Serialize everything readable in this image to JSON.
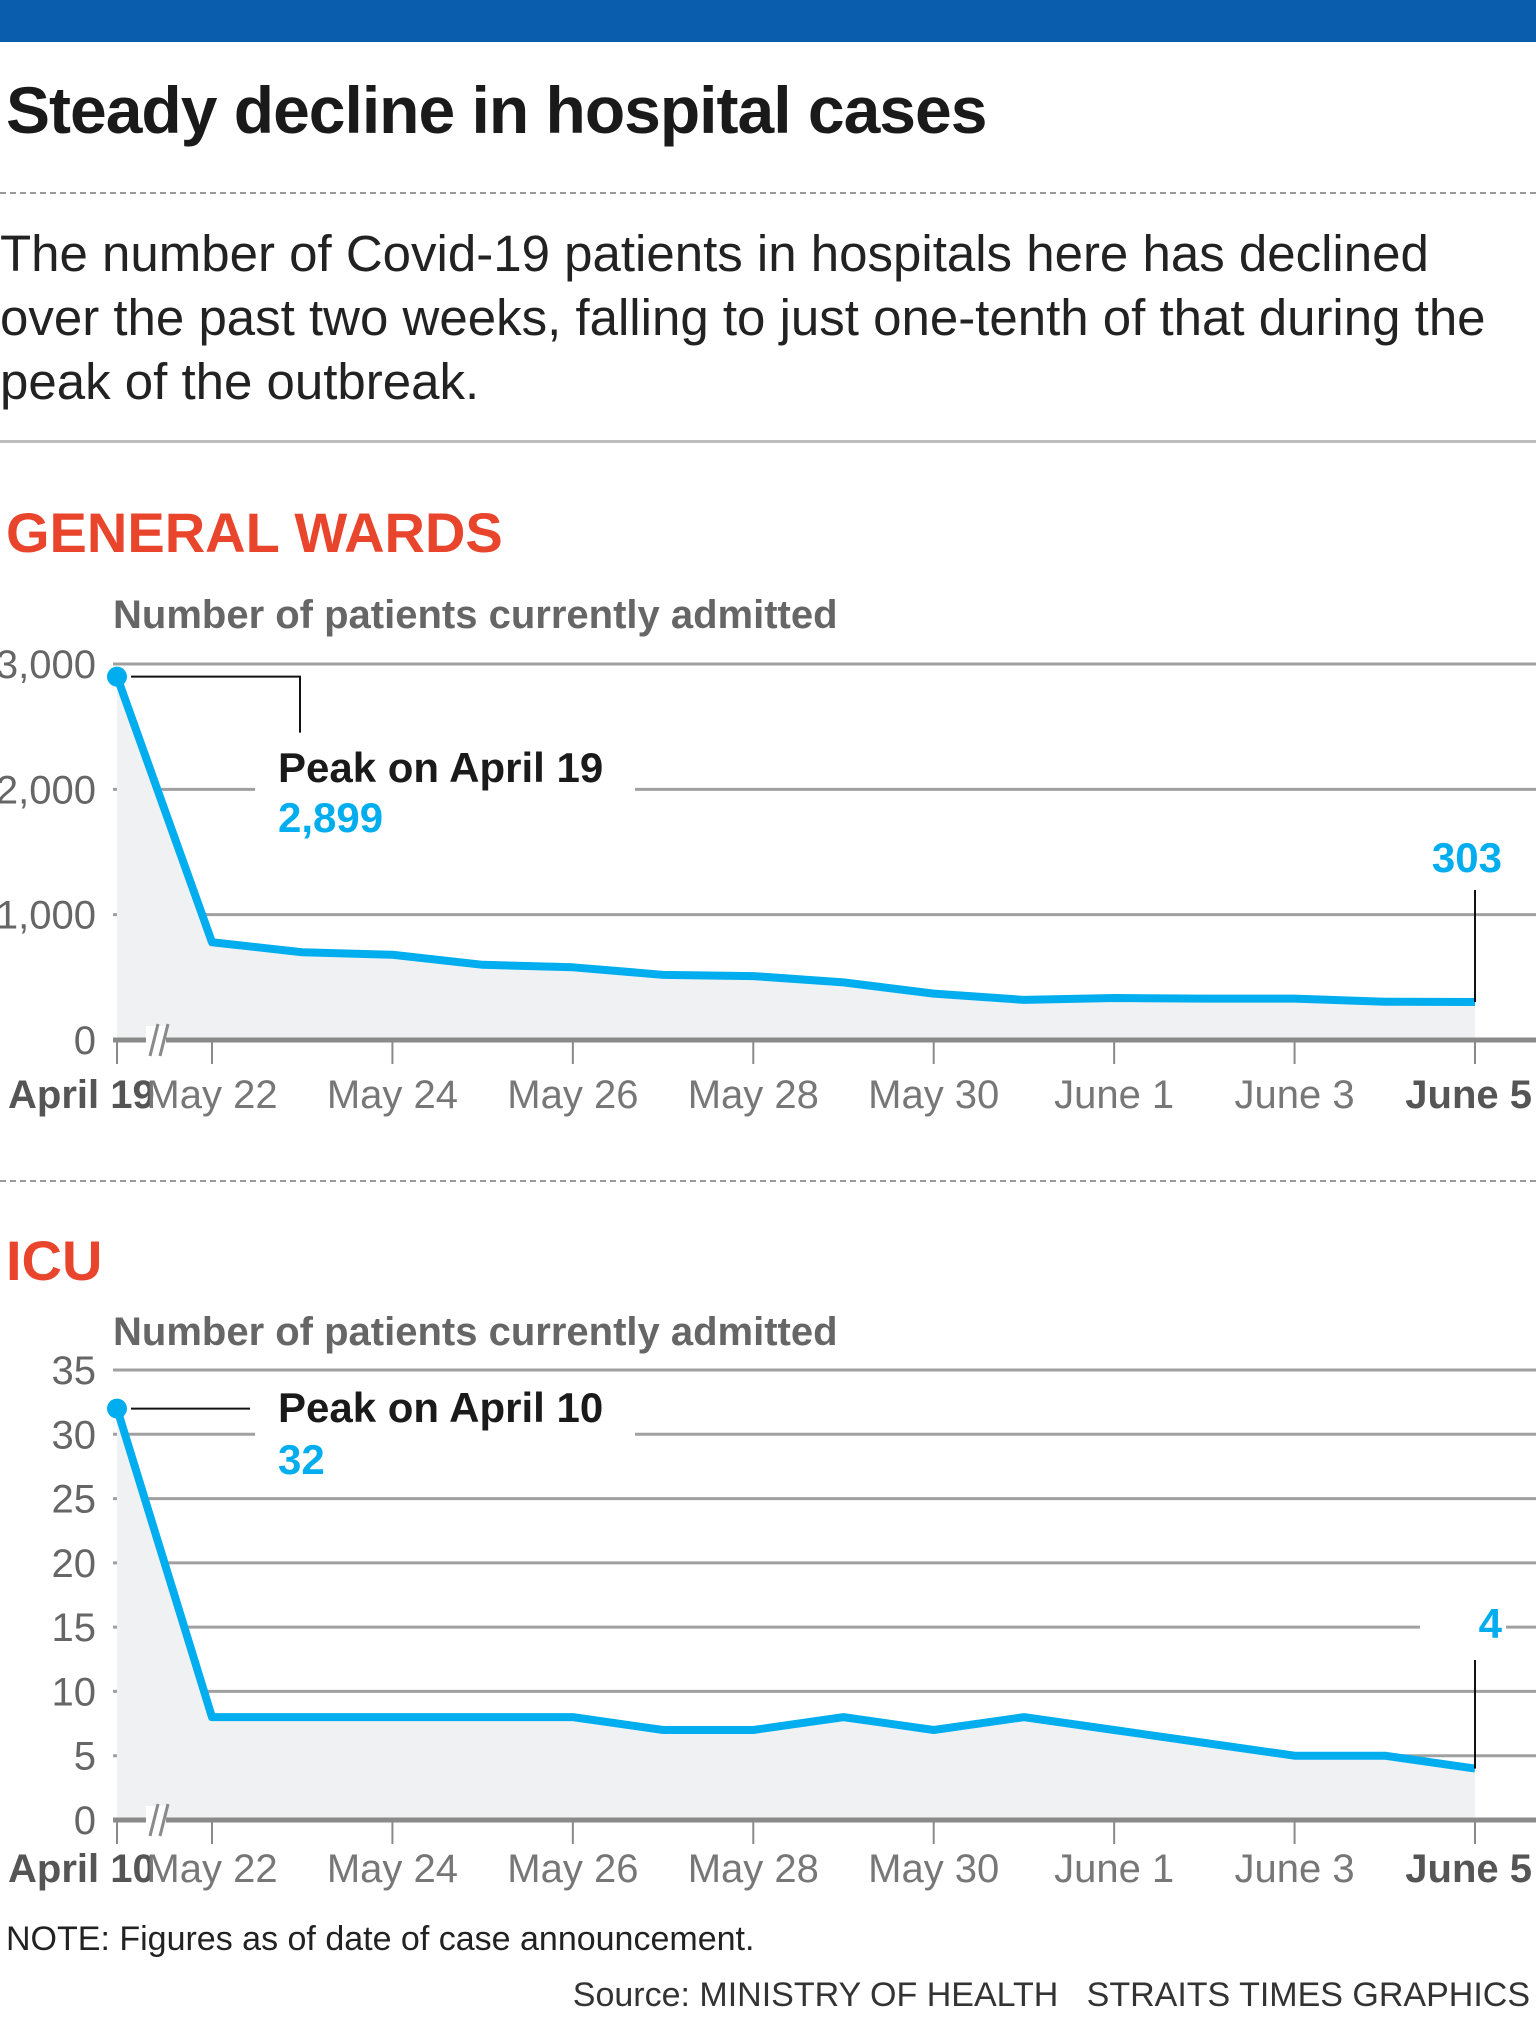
{
  "header": {
    "title": "Steady decline in hospital cases",
    "subtitle": "The number of Covid-19 patients in hospitals here has declined over the past two weeks, falling to just one-tenth of that during the peak of the outbreak."
  },
  "colors": {
    "top_bar": "#0a5cac",
    "section_title": "#e8452c",
    "line": "#00aeef",
    "area": "#eff1f3",
    "grid": "#a0a0a0"
  },
  "chart_data": [
    {
      "type": "area",
      "section_title": "GENERAL WARDS",
      "ylabel": "Number of patients currently admitted",
      "ylim": [
        0,
        3000
      ],
      "yticks": [
        "0",
        "1,000",
        "2,000",
        "3,000"
      ],
      "ytick_values": [
        0,
        1000,
        2000,
        3000
      ],
      "axis_break": true,
      "x_tick_labels": [
        "April 19",
        "May 22",
        "May 24",
        "May 26",
        "May 28",
        "May 30",
        "June 1",
        "June 3",
        "June 5"
      ],
      "x": [
        "April 19",
        "May 22",
        "May 23",
        "May 24",
        "May 25",
        "May 26",
        "May 27",
        "May 28",
        "May 29",
        "May 30",
        "May 31",
        "June 1",
        "June 2",
        "June 3",
        "June 4",
        "June 5"
      ],
      "values": [
        2899,
        780,
        700,
        680,
        600,
        580,
        520,
        510,
        460,
        370,
        320,
        335,
        330,
        330,
        305,
        303
      ],
      "annotations": {
        "peak_label": "Peak on April 19",
        "peak_value": "2,899",
        "end_value": "303"
      },
      "grid": true
    },
    {
      "type": "area",
      "section_title": "ICU",
      "ylabel": "Number of patients currently admitted",
      "ylim": [
        0,
        35
      ],
      "yticks": [
        "0",
        "5",
        "10",
        "15",
        "20",
        "25",
        "30",
        "35"
      ],
      "ytick_values": [
        0,
        5,
        10,
        15,
        20,
        25,
        30,
        35
      ],
      "axis_break": true,
      "x_tick_labels": [
        "April 10",
        "May 22",
        "May 24",
        "May 26",
        "May 28",
        "May 30",
        "June 1",
        "June 3",
        "June 5"
      ],
      "x": [
        "April 10",
        "May 22",
        "May 23",
        "May 24",
        "May 25",
        "May 26",
        "May 27",
        "May 28",
        "May 29",
        "May 30",
        "May 31",
        "June 1",
        "June 2",
        "June 3",
        "June 4",
        "June 5"
      ],
      "values": [
        32,
        8,
        8,
        8,
        8,
        8,
        7,
        7,
        8,
        7,
        8,
        7,
        6,
        5,
        5,
        4
      ],
      "annotations": {
        "peak_label": "Peak on April 10",
        "peak_value": "32",
        "end_value": "4"
      },
      "grid": true
    }
  ],
  "footer": {
    "note": "NOTE: Figures as of date of case announcement.",
    "source": "Source: MINISTRY OF HEALTH   STRAITS TIMES GRAPHICS"
  }
}
